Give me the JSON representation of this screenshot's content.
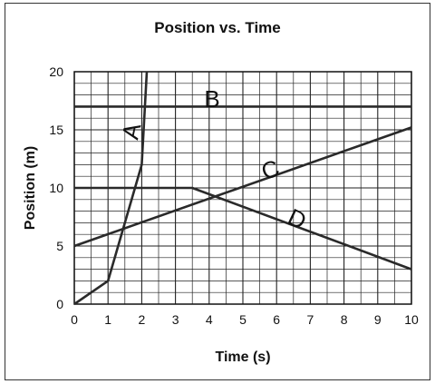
{
  "chart_data": {
    "type": "line",
    "title": "Position vs. Time",
    "xlabel": "Time (s)",
    "ylabel": "Position (m)",
    "xlim": [
      0,
      10
    ],
    "ylim": [
      0,
      20
    ],
    "x_ticks": [
      0,
      1,
      2,
      3,
      4,
      5,
      6,
      7,
      8,
      9,
      10
    ],
    "y_ticks": [
      0,
      5,
      10,
      15,
      20
    ],
    "grid": true,
    "grid_minor_x": 0.5,
    "grid_minor_y": 1,
    "line_color": "#2a2a2a",
    "series": [
      {
        "name": "A",
        "points": [
          [
            0,
            0
          ],
          [
            1,
            2
          ],
          [
            2,
            12
          ],
          [
            2.15,
            20
          ]
        ]
      },
      {
        "name": "B",
        "points": [
          [
            0,
            17
          ],
          [
            10,
            17
          ]
        ]
      },
      {
        "name": "C",
        "points": [
          [
            0,
            5
          ],
          [
            10,
            15.2
          ]
        ]
      },
      {
        "name": "D",
        "points": [
          [
            0,
            10
          ],
          [
            3.5,
            10
          ],
          [
            10,
            3
          ]
        ]
      }
    ]
  }
}
